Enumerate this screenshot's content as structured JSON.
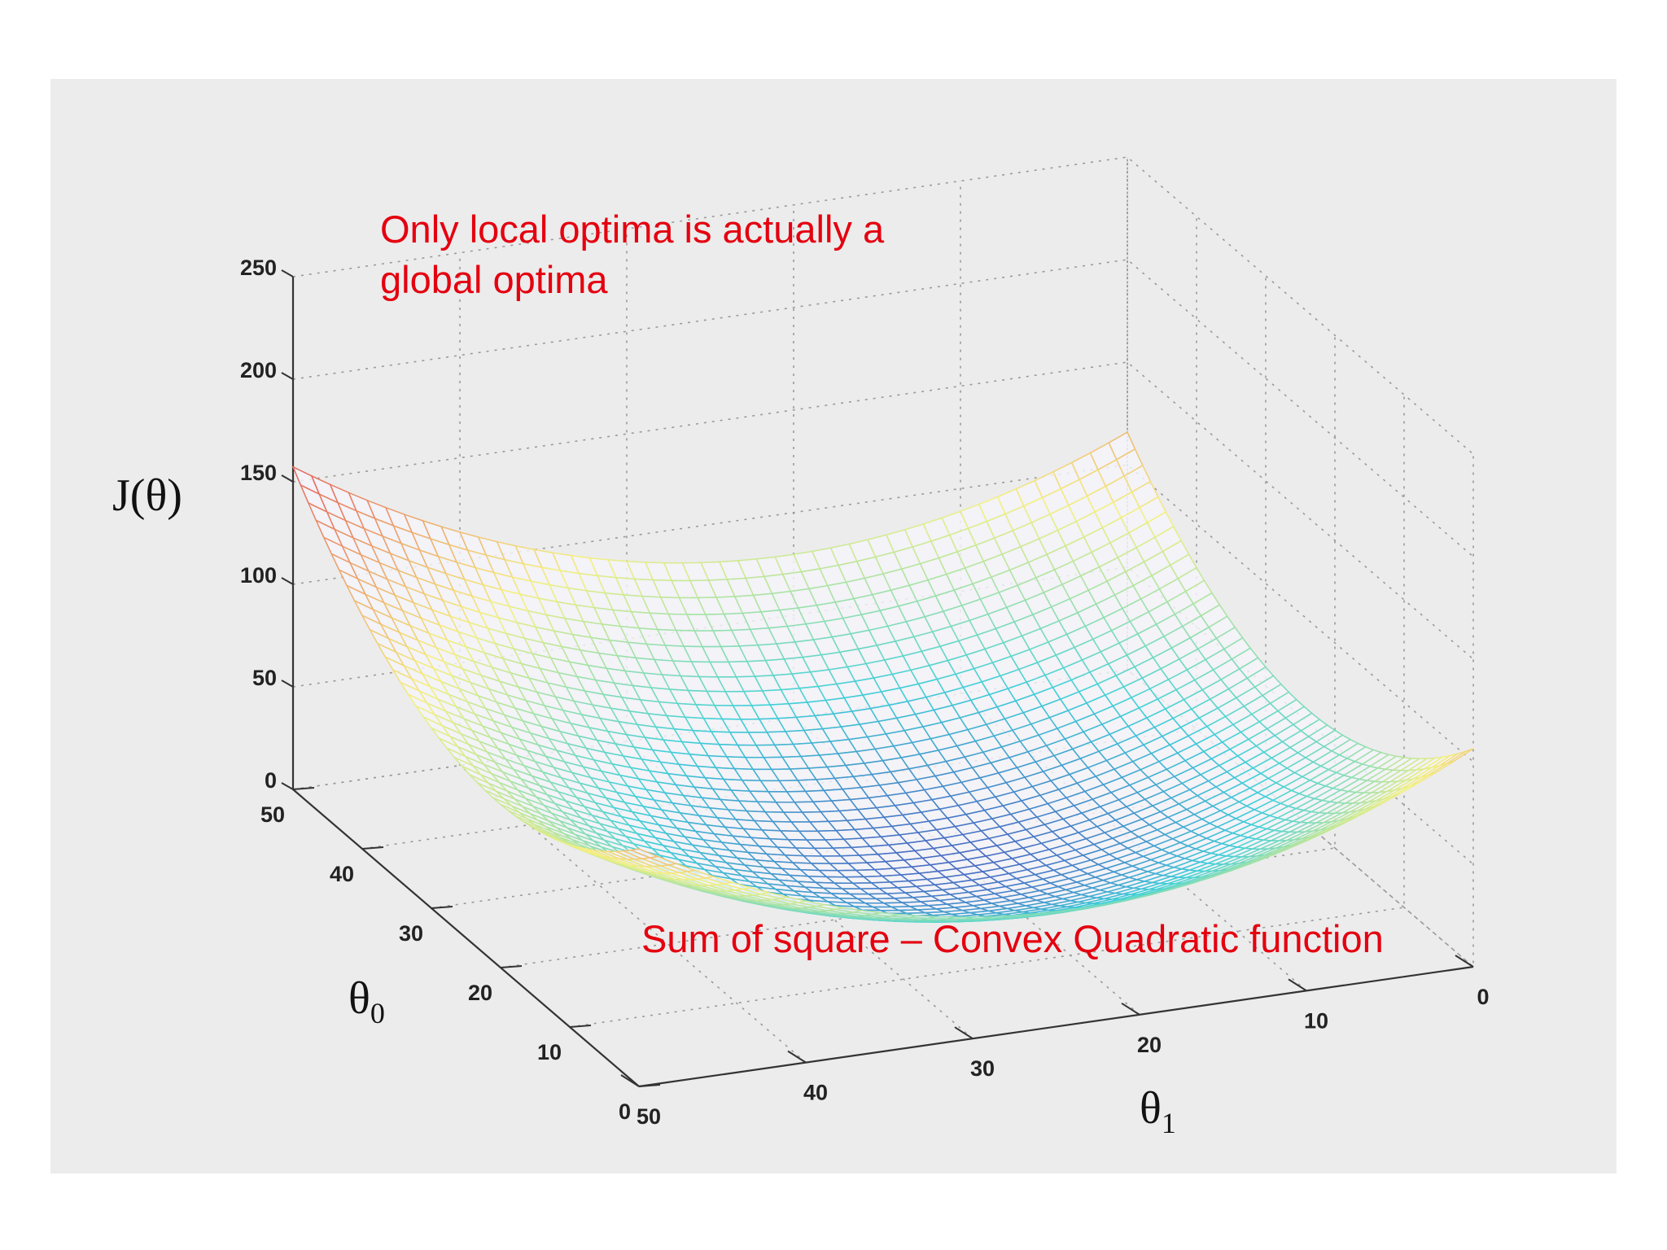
{
  "chart_data": {
    "type": "surface",
    "function": "J(θ0, θ1) — convex quadratic bowl (sum of squares)",
    "x_axis": {
      "label": "θ",
      "subscript": "1",
      "ticks": [
        "0",
        "10",
        "20",
        "30",
        "40",
        "50"
      ],
      "range": [
        0,
        50
      ]
    },
    "y_axis": {
      "label": "θ",
      "subscript": "0",
      "ticks": [
        "0",
        "10",
        "20",
        "30",
        "40",
        "50"
      ],
      "range": [
        0,
        50
      ]
    },
    "z_axis": {
      "label": "J(θ)",
      "ticks": [
        "0",
        "50",
        "100",
        "150",
        "200",
        "250"
      ],
      "range": [
        0,
        250
      ]
    },
    "grid": true,
    "colormap": [
      "#3a0f8f",
      "#4a5fc0",
      "#40d0d8",
      "#f5f080",
      "#e35a5a",
      "#5a1020"
    ],
    "annotations": [
      {
        "id": "top",
        "lines": [
          "Only local optima is actually a",
          "global optima"
        ],
        "color": "#e4000f"
      },
      {
        "id": "bottom",
        "lines": [
          "Sum of square – Convex Quadratic function"
        ],
        "color": "#e4000f"
      }
    ]
  }
}
